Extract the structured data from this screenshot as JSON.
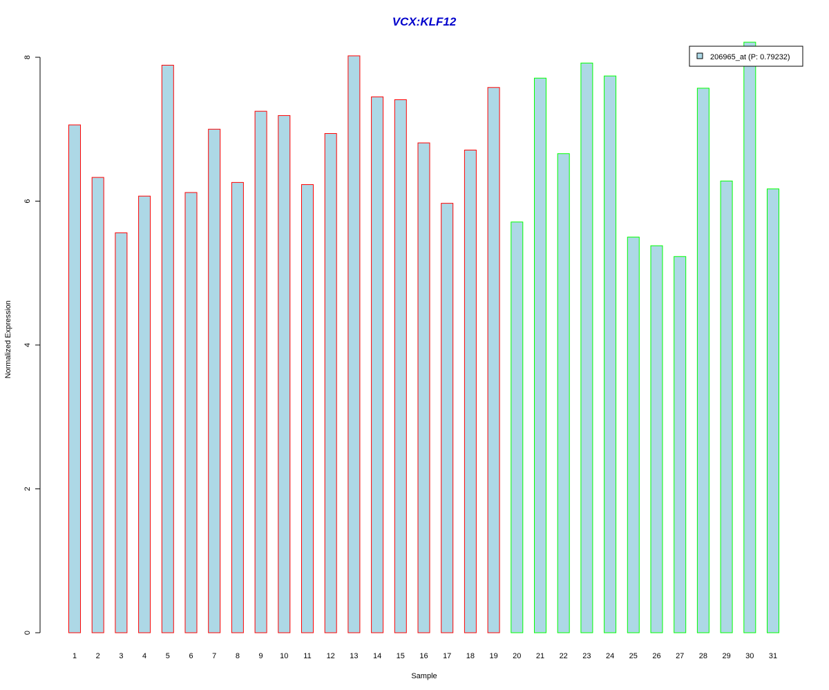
{
  "chart_data": {
    "type": "bar",
    "title": "VCX:KLF12",
    "xlabel": "Sample",
    "ylabel": "Normalized Expression",
    "categories": [
      "1",
      "2",
      "3",
      "4",
      "5",
      "6",
      "7",
      "8",
      "9",
      "10",
      "11",
      "12",
      "13",
      "14",
      "15",
      "16",
      "17",
      "18",
      "19",
      "20",
      "21",
      "22",
      "23",
      "24",
      "25",
      "26",
      "27",
      "28",
      "29",
      "30",
      "31"
    ],
    "series": [
      {
        "name": "206965_at (P: 0.79232)",
        "values": [
          7.06,
          6.33,
          5.56,
          6.07,
          7.89,
          6.12,
          7.0,
          6.26,
          7.25,
          7.19,
          6.23,
          6.94,
          8.02,
          7.45,
          7.41,
          6.81,
          5.97,
          6.71,
          7.58,
          5.71,
          7.71,
          6.66,
          7.92,
          7.74,
          5.5,
          5.38,
          5.23,
          7.57,
          6.28,
          8.21,
          6.17
        ]
      }
    ],
    "groups": [
      {
        "first_sample": 1,
        "last_sample": 19,
        "border_color": "#ff0000"
      },
      {
        "first_sample": 20,
        "last_sample": 31,
        "border_color": "#00ff00"
      }
    ],
    "ylim": [
      0,
      8
    ],
    "yticks": [
      0,
      2,
      4,
      6,
      8
    ],
    "grid": false,
    "legend_position": "top-right",
    "colors": {
      "title": "#0000cc",
      "bar_fill": "#add8e6",
      "legend_swatch": "#add8e6"
    }
  }
}
